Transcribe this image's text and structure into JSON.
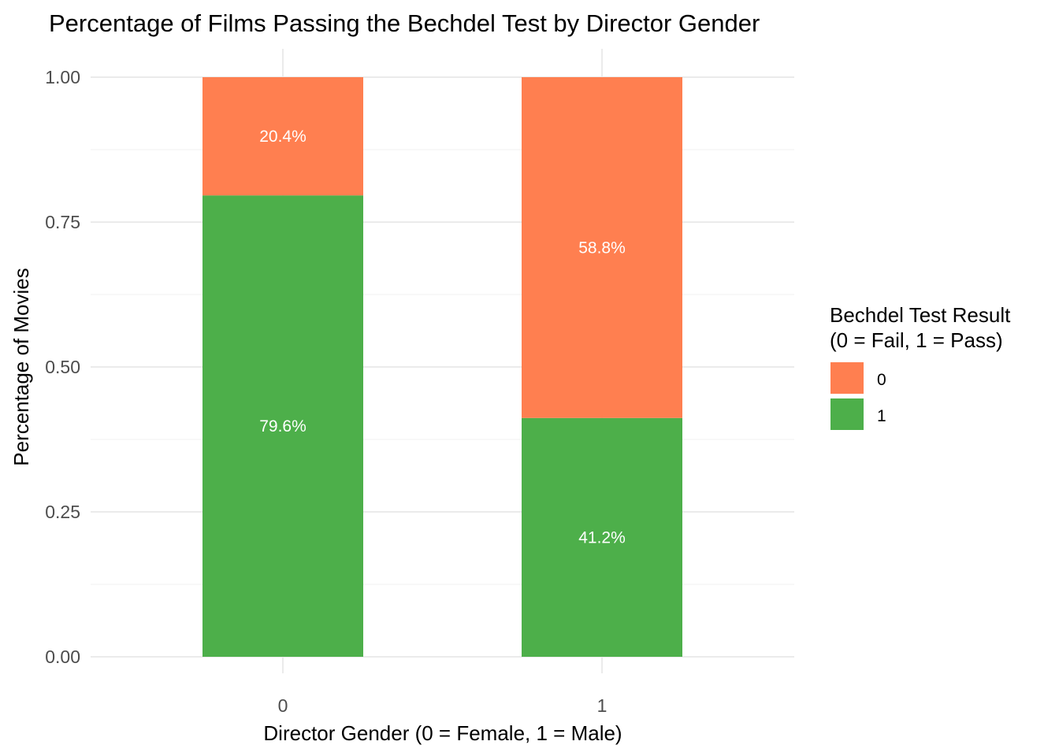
{
  "chart_data": {
    "type": "bar",
    "stacked": true,
    "title": "Percentage of Films Passing the Bechdel Test by Director Gender",
    "xlabel": "Director Gender (0 = Female, 1 = Male)",
    "ylabel": "Percentage of Movies",
    "categories": [
      "0",
      "1"
    ],
    "ylim": [
      0,
      1
    ],
    "yticks": [
      "0.00",
      "0.25",
      "0.50",
      "0.75",
      "1.00"
    ],
    "grid": true,
    "series": [
      {
        "name": "1",
        "values": [
          0.796,
          0.412
        ],
        "labels": [
          "79.6%",
          "41.2%"
        ],
        "color": "#4daf4a"
      },
      {
        "name": "0",
        "values": [
          0.204,
          0.588
        ],
        "labels": [
          "20.4%",
          "58.8%"
        ],
        "color": "#ff7f50"
      }
    ],
    "legend": {
      "title_line1": "Bechdel Test Result",
      "title_line2": "(0 = Fail, 1 = Pass)",
      "placement": "right"
    }
  }
}
